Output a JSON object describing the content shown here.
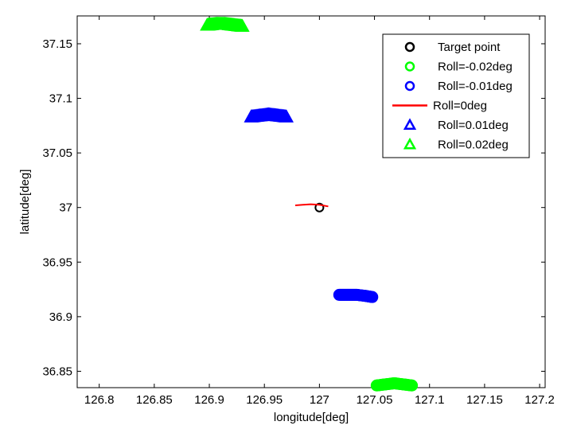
{
  "chart_data": {
    "type": "scatter",
    "xlabel": "longitude[deg]",
    "ylabel": "latitude[deg]",
    "xlim": [
      126.78,
      127.205
    ],
    "ylim": [
      36.835,
      37.1755
    ],
    "xticks": [
      "126.8",
      "126.85",
      "126.9",
      "126.95",
      "127",
      "127.05",
      "127.1",
      "127.15",
      "127.2"
    ],
    "yticks": [
      "36.85",
      "36.9",
      "36.95",
      "37",
      "37.05",
      "37.1",
      "37.15"
    ],
    "grid": false,
    "legend_position": "top-right",
    "legend": [
      {
        "label": "Target point",
        "marker": "circle",
        "color": "#000000"
      },
      {
        "label": "Roll=-0.02deg",
        "marker": "circle",
        "color": "#00ff00"
      },
      {
        "label": "Roll=-0.01deg",
        "marker": "circle",
        "color": "#0000ff"
      },
      {
        "label": "Roll=0deg",
        "marker": "line",
        "color": "#ff0000"
      },
      {
        "label": "Roll=0.01deg",
        "marker": "triangle",
        "color": "#0000ff"
      },
      {
        "label": "Roll=0.02deg",
        "marker": "triangle",
        "color": "#00ff00"
      }
    ],
    "series": [
      {
        "name": "Target point",
        "marker": "circle",
        "color": "#000000",
        "x": [
          127.0
        ],
        "y": [
          37.0
        ]
      },
      {
        "name": "Roll=-0.02deg",
        "marker": "circle",
        "color": "#00ff00",
        "x": [
          127.052,
          127.06,
          127.068,
          127.076,
          127.084
        ],
        "y": [
          36.837,
          36.838,
          36.839,
          36.838,
          36.837
        ]
      },
      {
        "name": "Roll=-0.01deg",
        "marker": "circle",
        "color": "#0000ff",
        "x": [
          127.018,
          127.026,
          127.034,
          127.042,
          127.048
        ],
        "y": [
          36.92,
          36.92,
          36.92,
          36.919,
          36.918
        ]
      },
      {
        "name": "Roll=0deg",
        "marker": "line",
        "color": "#ff0000",
        "x": [
          126.978,
          126.985,
          126.992,
          127.0,
          127.008
        ],
        "y": [
          37.002,
          37.0025,
          37.003,
          37.0025,
          37.001
        ]
      },
      {
        "name": "Roll=0.01deg",
        "marker": "triangle",
        "color": "#0000ff",
        "x": [
          126.938,
          126.946,
          126.954,
          126.962,
          126.97
        ],
        "y": [
          37.083,
          37.084,
          37.085,
          37.084,
          37.083
        ]
      },
      {
        "name": "Roll=0.02deg",
        "marker": "triangle",
        "color": "#00ff00",
        "x": [
          126.898,
          126.906,
          126.914,
          126.922,
          126.93
        ],
        "y": [
          37.167,
          37.168,
          37.168,
          37.167,
          37.166
        ]
      }
    ]
  }
}
